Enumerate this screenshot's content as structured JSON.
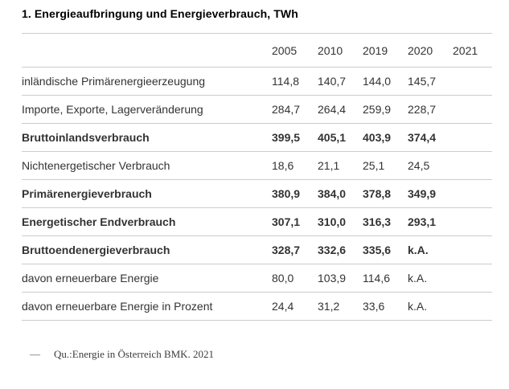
{
  "page": {
    "title": "1. Energieaufbringung und Energieverbrauch, TWh"
  },
  "table": {
    "columns": [
      "",
      "2005",
      "2010",
      "2019",
      "2020",
      "2021"
    ],
    "rows": [
      {
        "label": "inländische Primärenergieerzeugung",
        "values": [
          "114,8",
          "140,7",
          "144,0",
          "145,7",
          ""
        ],
        "bold": false
      },
      {
        "label": "Importe, Exporte, Lagerveränderung",
        "values": [
          "284,7",
          "264,4",
          "259,9",
          "228,7",
          ""
        ],
        "bold": false
      },
      {
        "label": "Bruttoinlandsverbrauch",
        "values": [
          "399,5",
          "405,1",
          "403,9",
          "374,4",
          ""
        ],
        "bold": true
      },
      {
        "label": "Nichtenergetischer Verbrauch",
        "values": [
          "18,6",
          "21,1",
          "25,1",
          "24,5",
          ""
        ],
        "bold": false
      },
      {
        "label": "Primärenergieverbrauch",
        "values": [
          "380,9",
          "384,0",
          "378,8",
          "349,9",
          ""
        ],
        "bold": true
      },
      {
        "label": "Energetischer Endverbrauch",
        "values": [
          "307,1",
          "310,0",
          "316,3",
          "293,1",
          ""
        ],
        "bold": true
      },
      {
        "label": "Bruttoendenergieverbrauch",
        "values": [
          "328,7",
          "332,6",
          "335,6",
          "k.A.",
          ""
        ],
        "bold": true
      },
      {
        "label": "davon erneuerbare Energie",
        "values": [
          "80,0",
          "103,9",
          "114,6",
          "k.A.",
          ""
        ],
        "bold": false
      },
      {
        "label": "davon erneuerbare Energie in Prozent",
        "values": [
          "24,4",
          "31,2",
          "33,6",
          "k.A.",
          ""
        ],
        "bold": false
      }
    ]
  },
  "footer": {
    "dash": "—",
    "source": "Qu.:Energie in Österreich BMK. 2021"
  },
  "colors": {
    "text": "#333333",
    "title": "#000000",
    "rule": "#cccccc",
    "background": "#ffffff"
  },
  "chart_data": {
    "type": "table",
    "title": "1. Energieaufbringung und Energieverbrauch, TWh",
    "unit": "TWh",
    "categories": [
      "2005",
      "2010",
      "2019",
      "2020",
      "2021"
    ],
    "series": [
      {
        "name": "inländische Primärenergieerzeugung",
        "values": [
          114.8,
          140.7,
          144.0,
          145.7,
          null
        ]
      },
      {
        "name": "Importe, Exporte, Lagerveränderung",
        "values": [
          284.7,
          264.4,
          259.9,
          228.7,
          null
        ]
      },
      {
        "name": "Bruttoinlandsverbrauch",
        "values": [
          399.5,
          405.1,
          403.9,
          374.4,
          null
        ]
      },
      {
        "name": "Nichtenergetischer Verbrauch",
        "values": [
          18.6,
          21.1,
          25.1,
          24.5,
          null
        ]
      },
      {
        "name": "Primärenergieverbrauch",
        "values": [
          380.9,
          384.0,
          378.8,
          349.9,
          null
        ]
      },
      {
        "name": "Energetischer Endverbrauch",
        "values": [
          307.1,
          310.0,
          316.3,
          293.1,
          null
        ]
      },
      {
        "name": "Bruttoendenergieverbrauch",
        "values": [
          328.7,
          332.6,
          335.6,
          "k.A.",
          null
        ]
      },
      {
        "name": "davon erneuerbare Energie",
        "values": [
          80.0,
          103.9,
          114.6,
          "k.A.",
          null
        ]
      },
      {
        "name": "davon erneuerbare Energie in Prozent",
        "values": [
          24.4,
          31.2,
          33.6,
          "k.A.",
          null
        ]
      }
    ],
    "source": "Qu.:Energie in Österreich BMK. 2021"
  }
}
